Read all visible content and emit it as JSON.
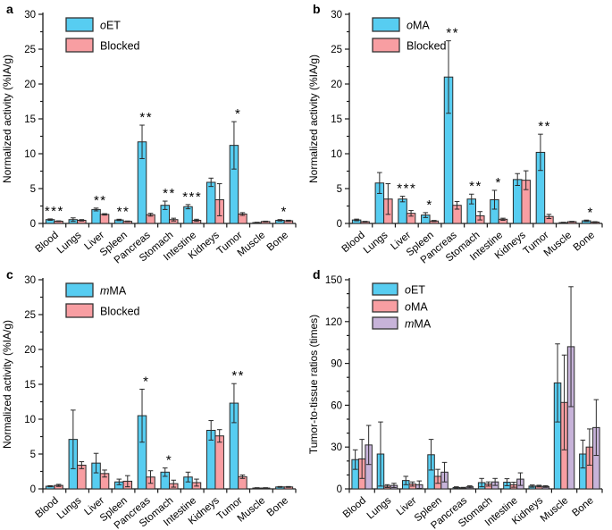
{
  "figure": {
    "background": "#ffffff",
    "colors": {
      "cyan": "#57cdf1",
      "salmon": "#f89ea2",
      "purple": "#c7b3d9",
      "axis": "#1a1a1a"
    }
  },
  "chart_data": [
    {
      "label": "a",
      "type": "bar",
      "ylabel": "Normalized activity (%IA/g)",
      "ylim": [
        0,
        30
      ],
      "ytick_step": 5,
      "minor_step": 2.5,
      "grid": false,
      "legend_position": "top-left",
      "categories": [
        "Blood",
        "Lungs",
        "Liver",
        "Spleen",
        "Pancreas",
        "Stomach",
        "Intestine",
        "Kidneys",
        "Tumor",
        "Muscle",
        "Bone"
      ],
      "series": [
        {
          "name": "oET",
          "color": "#57cdf1",
          "values": [
            0.55,
            0.55,
            2.0,
            0.5,
            11.7,
            2.6,
            2.4,
            5.9,
            11.2,
            0.12,
            0.45
          ],
          "errors": [
            0.1,
            0.25,
            0.2,
            0.1,
            2.4,
            0.6,
            0.3,
            0.6,
            3.4,
            0.05,
            0.1
          ]
        },
        {
          "name": "Blocked",
          "color": "#f89ea2",
          "values": [
            0.32,
            0.45,
            1.3,
            0.3,
            1.25,
            0.55,
            0.45,
            3.4,
            1.35,
            0.28,
            0.38
          ],
          "errors": [
            0.05,
            0.1,
            0.1,
            0.05,
            0.2,
            0.2,
            0.15,
            2.3,
            0.2,
            0.05,
            0.08
          ]
        }
      ],
      "significance": [
        {
          "category": "Blood",
          "stars": "***"
        },
        {
          "category": "Liver",
          "stars": "**"
        },
        {
          "category": "Spleen",
          "stars": "**"
        },
        {
          "category": "Pancreas",
          "stars": "**"
        },
        {
          "category": "Stomach",
          "stars": "**"
        },
        {
          "category": "Intestine",
          "stars": "***"
        },
        {
          "category": "Tumor",
          "stars": "*"
        },
        {
          "category": "Bone",
          "stars": "*"
        }
      ]
    },
    {
      "label": "b",
      "type": "bar",
      "ylabel": "Normalized activity (%IA/g)",
      "ylim": [
        0,
        30
      ],
      "ytick_step": 5,
      "minor_step": 2.5,
      "grid": false,
      "legend_position": "top-left",
      "categories": [
        "Blood",
        "Lungs",
        "Liver",
        "Spleen",
        "Pancreas",
        "Stomach",
        "Intestine",
        "Kidneys",
        "Tumor",
        "Muscle",
        "Bone"
      ],
      "series": [
        {
          "name": "oMA",
          "color": "#57cdf1",
          "values": [
            0.5,
            5.8,
            3.5,
            1.2,
            21.0,
            3.5,
            3.4,
            6.3,
            10.2,
            0.12,
            0.38
          ],
          "errors": [
            0.12,
            1.5,
            0.4,
            0.35,
            5.2,
            0.7,
            1.35,
            0.85,
            2.6,
            0.05,
            0.1
          ]
        },
        {
          "name": "Blocked",
          "color": "#f89ea2",
          "values": [
            0.25,
            3.5,
            1.45,
            0.35,
            2.6,
            1.1,
            0.6,
            6.2,
            1.0,
            0.25,
            0.2
          ],
          "errors": [
            0.05,
            2.2,
            0.4,
            0.08,
            0.55,
            0.6,
            0.15,
            1.35,
            0.3,
            0.05,
            0.05
          ]
        }
      ],
      "significance": [
        {
          "category": "Liver",
          "stars": "***"
        },
        {
          "category": "Spleen",
          "stars": "*"
        },
        {
          "category": "Pancreas",
          "stars": "**"
        },
        {
          "category": "Stomach",
          "stars": "**"
        },
        {
          "category": "Intestine",
          "stars": "*"
        },
        {
          "category": "Tumor",
          "stars": "**"
        },
        {
          "category": "Bone",
          "stars": "*"
        }
      ]
    },
    {
      "label": "c",
      "type": "bar",
      "ylabel": "Normalized activity (%IA/g)",
      "ylim": [
        0,
        30
      ],
      "ytick_step": 5,
      "minor_step": 2.5,
      "grid": false,
      "legend_position": "top-left",
      "categories": [
        "Blood",
        "Lungs",
        "Liver",
        "Spleen",
        "Pancreas",
        "Stomach",
        "Intestine",
        "Kidneys",
        "Tumor",
        "Muscle",
        "Bone"
      ],
      "series": [
        {
          "name": "mMA",
          "color": "#57cdf1",
          "values": [
            0.38,
            7.1,
            3.7,
            1.0,
            10.5,
            2.4,
            1.7,
            8.4,
            12.3,
            0.12,
            0.28
          ],
          "errors": [
            0.08,
            4.2,
            1.4,
            0.4,
            3.8,
            0.6,
            0.7,
            1.4,
            2.8,
            0.05,
            0.06
          ]
        },
        {
          "name": "Blocked",
          "color": "#f89ea2",
          "values": [
            0.5,
            3.4,
            2.2,
            1.1,
            1.7,
            0.75,
            0.9,
            7.6,
            1.75,
            0.12,
            0.28
          ],
          "errors": [
            0.15,
            0.5,
            0.5,
            0.8,
            0.9,
            0.5,
            0.5,
            0.9,
            0.25,
            0.05,
            0.06
          ]
        }
      ],
      "significance": [
        {
          "category": "Pancreas",
          "stars": "*"
        },
        {
          "category": "Stomach",
          "stars": "*"
        },
        {
          "category": "Tumor",
          "stars": "**"
        }
      ]
    },
    {
      "label": "d",
      "type": "bar",
      "ylabel": "Tumor-to-tissue ratios (times)",
      "ylim": [
        0,
        150
      ],
      "ytick_step": 30,
      "minor_step": 10,
      "grid": false,
      "legend_position": "top-left",
      "categories": [
        "Blood",
        "Lungs",
        "Liver",
        "Spleen",
        "Pancreas",
        "Stomach",
        "Intestine",
        "Kidneys",
        "Muscle",
        "Bone"
      ],
      "series": [
        {
          "name": "oET",
          "color": "#57cdf1",
          "values": [
            21,
            25,
            6,
            24.5,
            1,
            4.5,
            4.8,
            2,
            76,
            25
          ],
          "errors": [
            7,
            23,
            3,
            11,
            0.5,
            3,
            2.5,
            0.8,
            28,
            10
          ]
        },
        {
          "name": "oMA",
          "color": "#f89ea2",
          "values": [
            21.5,
            2,
            3.5,
            9,
            0.7,
            3.5,
            3,
            2,
            62,
            30
          ],
          "errors": [
            14,
            1,
            1.5,
            5,
            0.4,
            1.5,
            1.8,
            0.6,
            34,
            13
          ]
        },
        {
          "name": "mMA",
          "color": "#c7b3d9",
          "values": [
            31.5,
            2.5,
            3,
            12,
            1.5,
            5,
            7,
            1.7,
            102,
            44
          ],
          "errors": [
            14,
            1.5,
            2.7,
            7,
            0.7,
            2.5,
            4.5,
            0.6,
            43,
            20
          ]
        }
      ],
      "significance": []
    }
  ]
}
